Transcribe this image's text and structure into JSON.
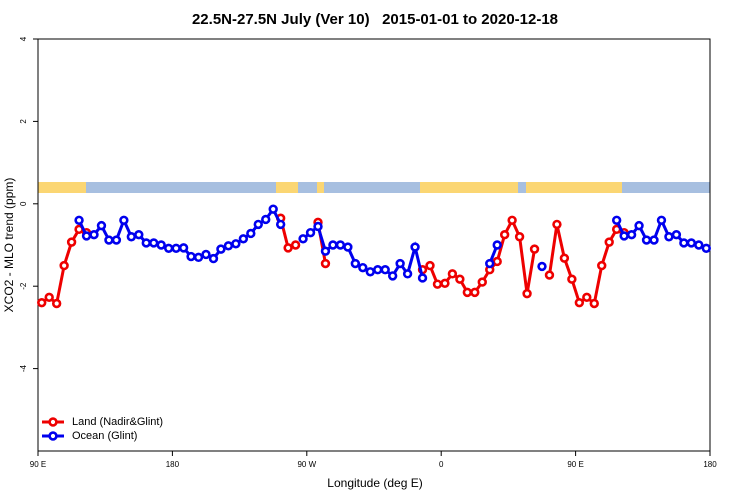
{
  "chart_data": {
    "type": "line",
    "title": "22.5N-27.5N July (Ver 10)   2015-01-01 to 2020-12-18",
    "xlabel": "Longitude (deg E)",
    "ylabel": "XCO2 - MLO trend (ppm)",
    "xlim": [
      90,
      540
    ],
    "ylim": [
      -6,
      4
    ],
    "xticks": [
      {
        "value": 90,
        "label": "90 E"
      },
      180,
      {
        "value": 270,
        "label": "90 W"
      },
      {
        "value": 360,
        "label": "0"
      },
      {
        "value": 450,
        "label": "90 E"
      },
      {
        "value": 540,
        "label": "180"
      }
    ],
    "yticks": [
      4,
      2,
      0,
      -2,
      -4
    ],
    "legend": "bottom-left",
    "x": [
      92.5,
      97.5,
      102.5,
      107.5,
      112.5,
      117.5,
      122.5,
      127.5,
      132.5,
      137.5,
      142.5,
      147.5,
      152.5,
      157.5,
      162.5,
      167.5,
      172.5,
      177.5,
      182.5,
      187.5,
      192.5,
      197.5,
      202.5,
      207.5,
      212.5,
      217.5,
      222.5,
      227.5,
      232.5,
      237.5,
      242.5,
      247.5,
      252.5,
      257.5,
      262.5,
      267.5,
      272.5,
      277.5,
      282.5,
      287.5,
      292.5,
      297.5,
      302.5,
      307.5,
      312.5,
      317.5,
      322.5,
      327.5,
      332.5,
      337.5,
      342.5,
      347.5,
      352.5,
      357.5,
      362.5,
      367.5,
      372.5,
      377.5,
      382.5,
      387.5,
      392.5,
      397.5,
      402.5,
      407.5,
      412.5,
      417.5,
      422.5,
      427.5,
      432.5,
      437.5,
      442.5,
      447.5,
      452.5,
      457.5,
      462.5,
      467.5,
      472.5,
      477.5,
      482.5,
      487.5,
      492.5,
      497.5,
      502.5,
      507.5,
      512.5,
      517.5,
      522.5,
      527.5,
      532.5,
      537.5
    ],
    "series": [
      {
        "name": "Land (Nadir&Glint)",
        "color": "#ee0000",
        "values": [
          -2.4,
          -2.27,
          -2.42,
          -1.5,
          -0.93,
          -0.62,
          -0.7,
          null,
          null,
          null,
          null,
          null,
          null,
          null,
          null,
          null,
          null,
          null,
          null,
          null,
          null,
          null,
          null,
          null,
          null,
          null,
          null,
          null,
          null,
          null,
          null,
          null,
          -0.35,
          -1.07,
          -1.0,
          null,
          null,
          -0.45,
          -1.45,
          null,
          null,
          null,
          null,
          null,
          null,
          null,
          null,
          null,
          null,
          null,
          null,
          -1.6,
          -1.5,
          -1.95,
          -1.93,
          -1.7,
          -1.83,
          -2.15,
          -2.15,
          -1.9,
          -1.6,
          -1.4,
          -0.75,
          -0.4,
          -0.8,
          -2.18,
          -1.1,
          null,
          -1.73,
          -0.5,
          -1.32,
          -1.83,
          -2.4,
          -2.27,
          -2.42,
          -1.5,
          -0.93,
          -0.62,
          -0.7,
          null,
          null,
          null,
          null,
          null,
          null,
          null,
          null,
          null,
          null,
          null
        ]
      },
      {
        "name": "Ocean (Glint)",
        "color": "#0000ee",
        "values": [
          null,
          null,
          null,
          null,
          null,
          -0.4,
          -0.78,
          -0.75,
          -0.53,
          -0.88,
          -0.88,
          -0.4,
          -0.8,
          -0.75,
          -0.95,
          -0.95,
          -1.0,
          -1.08,
          -1.08,
          -1.07,
          -1.28,
          -1.3,
          -1.23,
          -1.33,
          -1.1,
          -1.02,
          -0.97,
          -0.85,
          -0.72,
          -0.5,
          -0.38,
          -0.13,
          -0.5,
          null,
          null,
          -0.85,
          -0.7,
          -0.55,
          -1.15,
          -1.0,
          -1.0,
          -1.05,
          -1.45,
          -1.55,
          -1.65,
          -1.6,
          -1.6,
          -1.75,
          -1.45,
          -1.7,
          -1.05,
          -1.8,
          null,
          null,
          null,
          null,
          null,
          null,
          null,
          null,
          -1.45,
          -1.0,
          null,
          null,
          null,
          null,
          null,
          -1.52,
          null,
          null,
          null,
          null,
          null,
          null,
          null,
          null,
          null,
          -0.4,
          -0.78,
          -0.75,
          -0.53,
          -0.88,
          -0.88,
          -0.4,
          -0.8,
          -0.75,
          -0.95,
          -0.95,
          -1.0,
          -1.08
        ]
      }
    ]
  }
}
